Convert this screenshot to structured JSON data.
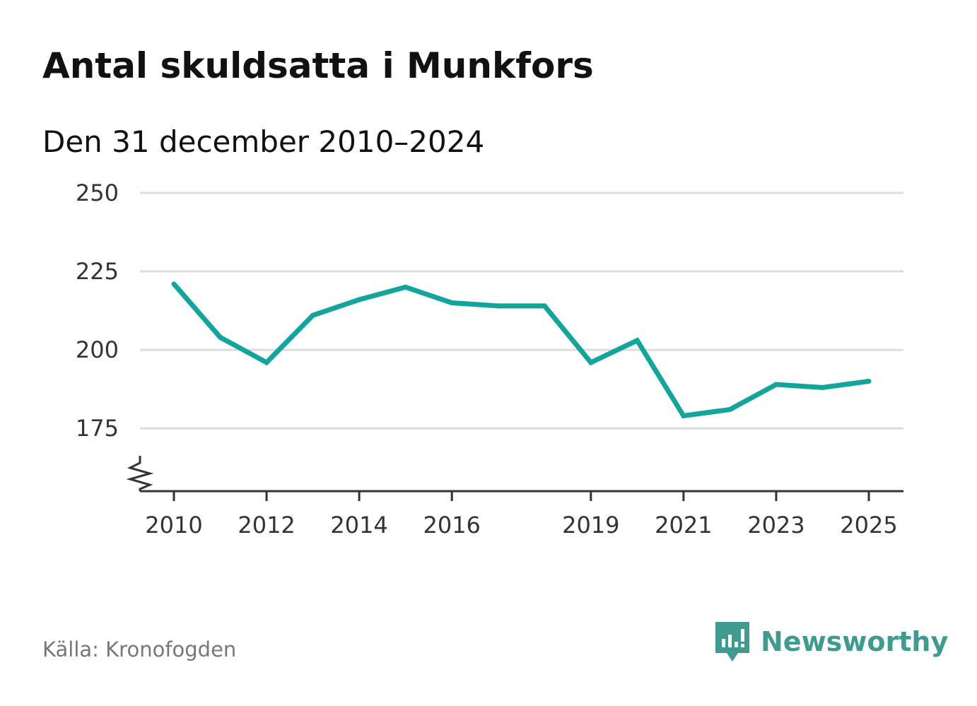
{
  "chart_data": {
    "type": "line",
    "title": "Antal skuldsatta i Munkfors",
    "subtitle": "Den 31 december 2010–2024",
    "x": [
      2010,
      2011,
      2012,
      2013,
      2014,
      2015,
      2016,
      2017,
      2018,
      2019,
      2020,
      2021,
      2022,
      2023,
      2024,
      2025
    ],
    "series": [
      {
        "name": "Antal skuldsatta",
        "values": [
          221,
          204,
          196,
          211,
          216,
          220,
          215,
          214,
          214,
          196,
          203,
          179,
          181,
          189,
          188,
          190
        ]
      }
    ],
    "x_ticks": [
      "2010",
      "2012",
      "2014",
      "2016",
      "2019",
      "2021",
      "2023",
      "2025"
    ],
    "y_ticks": [
      "250",
      "225",
      "200",
      "175"
    ],
    "ylim": [
      155,
      250
    ],
    "xlim": [
      2010,
      2025
    ],
    "xlabel": "",
    "ylabel": "",
    "grid": true,
    "axis_break": true,
    "line_color": "#13a59c",
    "grid_color": "#dddddd"
  },
  "source": "Källa: Kronofogden",
  "brand": {
    "name": "Newsworthy",
    "icon": "newsworthy-logo-icon",
    "color": "#3f9a8f"
  }
}
